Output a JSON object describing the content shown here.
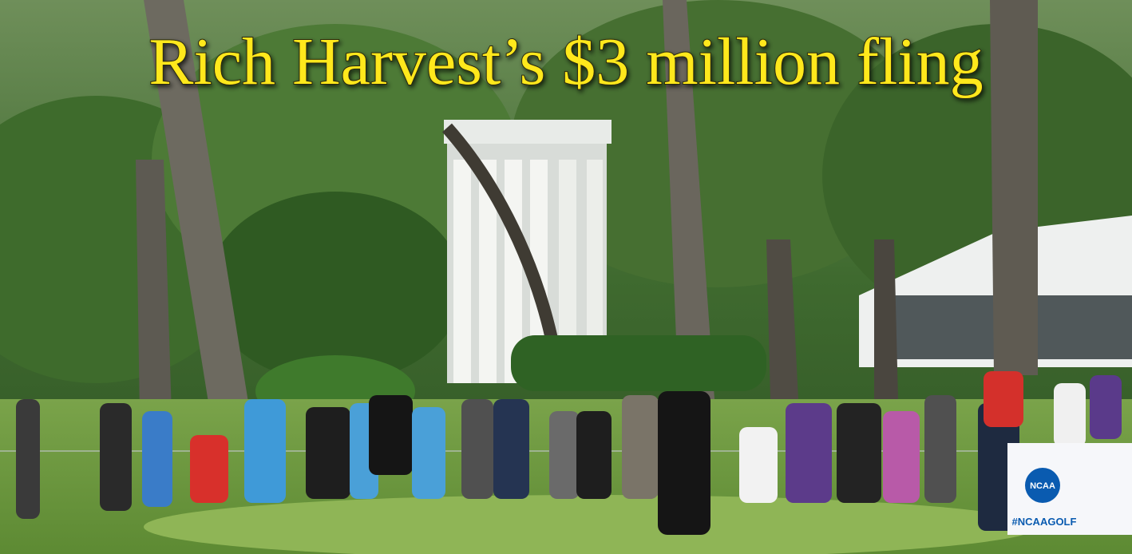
{
  "title": "Rich Harvest’s $3 million fling",
  "signage": {
    "banner_logo": "NCAA",
    "banner_hashtag": "#NCAAGOLF"
  }
}
